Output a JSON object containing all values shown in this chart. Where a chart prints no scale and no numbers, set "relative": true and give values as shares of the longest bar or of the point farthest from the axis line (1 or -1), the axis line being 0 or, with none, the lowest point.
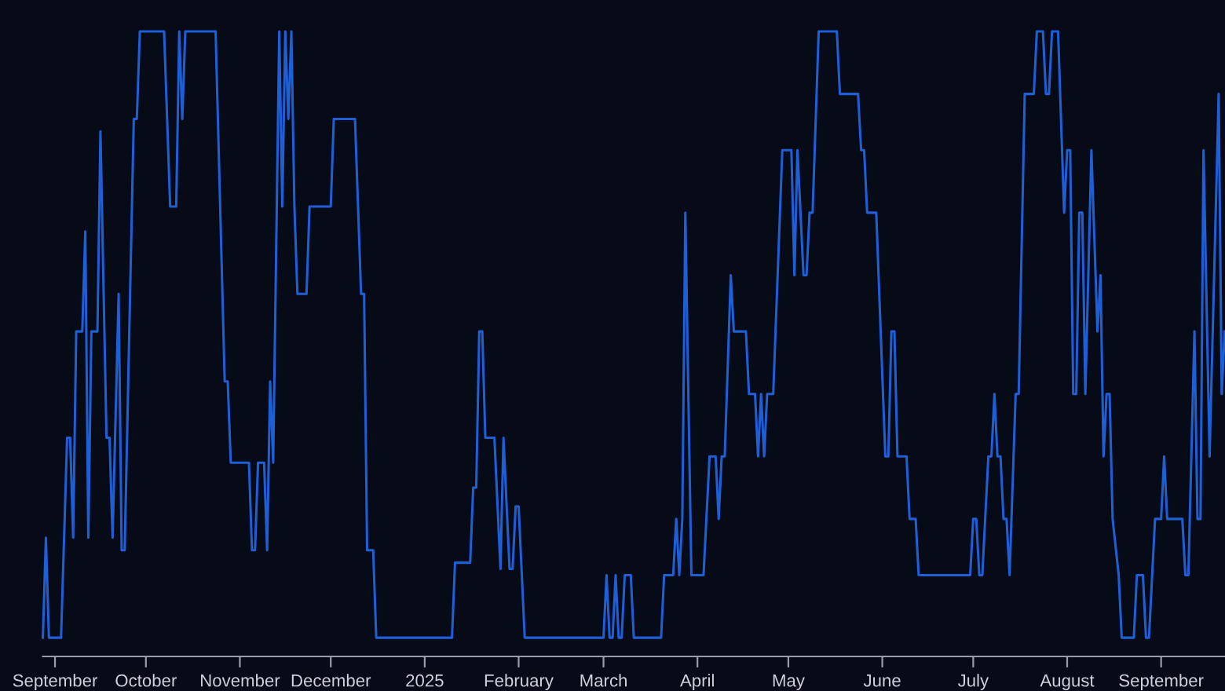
{
  "chart_data": {
    "type": "line",
    "relative": true,
    "color": "#1f5fd6",
    "xlim": [
      "2024-08-28",
      "2025-09-22T02:00"
    ],
    "xticks": [
      {
        "value": "2024-09-01",
        "label": "September"
      },
      {
        "value": "2024-10-01",
        "label": "October"
      },
      {
        "value": "2024-11-01",
        "label": "November"
      },
      {
        "value": "2024-12-01",
        "label": "December"
      },
      {
        "value": "2025-01-01",
        "label": "2025"
      },
      {
        "value": "2025-02-01",
        "label": "February"
      },
      {
        "value": "2025-03-01",
        "label": "March"
      },
      {
        "value": "2025-04-01",
        "label": "April"
      },
      {
        "value": "2025-05-01",
        "label": "May"
      },
      {
        "value": "2025-06-01",
        "label": "June"
      },
      {
        "value": "2025-07-01",
        "label": "July"
      },
      {
        "value": "2025-08-01",
        "label": "August"
      },
      {
        "value": "2025-09-01",
        "label": "September"
      }
    ],
    "x": [
      "2024-08-28",
      "2024-08-29",
      "2024-08-30",
      "2024-09-03",
      "2024-09-05",
      "2024-09-06",
      "2024-09-07",
      "2024-09-08",
      "2024-09-10",
      "2024-09-11",
      "2024-09-12",
      "2024-09-13",
      "2024-09-15",
      "2024-09-16",
      "2024-09-18",
      "2024-09-19",
      "2024-09-20",
      "2024-09-22",
      "2024-09-23",
      "2024-09-24",
      "2024-09-27",
      "2024-09-28",
      "2024-09-29",
      "2024-10-07",
      "2024-10-09",
      "2024-10-11",
      "2024-10-12",
      "2024-10-13",
      "2024-10-14",
      "2024-10-24",
      "2024-10-27",
      "2024-10-28",
      "2024-10-29",
      "2024-11-04",
      "2024-11-05",
      "2024-11-06",
      "2024-11-07",
      "2024-11-09",
      "2024-11-10",
      "2024-11-11",
      "2024-11-12",
      "2024-11-14",
      "2024-11-15",
      "2024-11-16",
      "2024-11-17",
      "2024-11-18",
      "2024-11-19",
      "2024-11-20",
      "2024-11-23",
      "2024-11-24",
      "2024-12-01",
      "2024-12-02",
      "2024-12-09",
      "2024-12-11",
      "2024-12-12",
      "2024-12-13",
      "2024-12-15",
      "2024-12-16",
      "2025-01-10",
      "2025-01-11",
      "2025-01-16",
      "2025-01-17",
      "2025-01-18",
      "2025-01-19",
      "2025-01-20",
      "2025-01-21",
      "2025-01-24",
      "2025-01-26",
      "2025-01-27",
      "2025-01-29",
      "2025-01-30",
      "2025-01-31",
      "2025-02-01",
      "2025-02-03",
      "2025-03-01",
      "2025-03-02",
      "2025-03-03",
      "2025-03-04",
      "2025-03-05",
      "2025-03-06",
      "2025-03-07",
      "2025-03-08",
      "2025-03-10",
      "2025-03-11",
      "2025-03-20",
      "2025-03-21",
      "2025-03-24",
      "2025-03-25",
      "2025-03-26",
      "2025-03-27",
      "2025-03-28",
      "2025-03-30",
      "2025-04-03",
      "2025-04-05",
      "2025-04-07",
      "2025-04-08",
      "2025-04-09",
      "2025-04-10",
      "2025-04-12",
      "2025-04-13",
      "2025-04-17",
      "2025-04-18",
      "2025-04-20",
      "2025-04-21",
      "2025-04-22",
      "2025-04-23",
      "2025-04-24",
      "2025-04-26",
      "2025-04-29",
      "2025-05-02",
      "2025-05-03",
      "2025-05-04",
      "2025-05-06",
      "2025-05-07",
      "2025-05-08",
      "2025-05-09",
      "2025-05-11",
      "2025-05-17",
      "2025-05-18",
      "2025-05-24",
      "2025-05-25",
      "2025-05-26",
      "2025-05-27",
      "2025-05-30",
      "2025-06-02",
      "2025-06-03",
      "2025-06-04",
      "2025-06-05",
      "2025-06-06",
      "2025-06-09",
      "2025-06-10",
      "2025-06-12",
      "2025-06-13",
      "2025-06-30",
      "2025-07-01",
      "2025-07-02",
      "2025-07-03",
      "2025-07-04",
      "2025-07-06",
      "2025-07-07",
      "2025-07-08",
      "2025-07-09",
      "2025-07-10",
      "2025-07-11",
      "2025-07-12",
      "2025-07-13",
      "2025-07-15",
      "2025-07-16",
      "2025-07-18",
      "2025-07-21",
      "2025-07-22",
      "2025-07-24",
      "2025-07-25",
      "2025-07-26",
      "2025-07-27",
      "2025-07-29",
      "2025-07-31",
      "2025-08-01",
      "2025-08-02",
      "2025-08-03",
      "2025-08-04",
      "2025-08-05",
      "2025-08-06",
      "2025-08-07",
      "2025-08-09",
      "2025-08-11",
      "2025-08-12",
      "2025-08-13",
      "2025-08-14",
      "2025-08-15",
      "2025-08-16",
      "2025-08-18",
      "2025-08-19",
      "2025-08-23",
      "2025-08-24",
      "2025-08-26",
      "2025-08-27",
      "2025-08-28",
      "2025-08-30",
      "2025-09-01",
      "2025-09-02",
      "2025-09-03",
      "2025-09-08",
      "2025-09-09",
      "2025-09-10",
      "2025-09-12",
      "2025-09-13",
      "2025-09-14",
      "2025-09-15",
      "2025-09-17",
      "2025-09-20",
      "2025-09-21",
      "2025-09-22"
    ],
    "values": [
      0.03,
      0.19,
      0.03,
      0.03,
      0.35,
      0.35,
      0.19,
      0.52,
      0.52,
      0.68,
      0.19,
      0.52,
      0.52,
      0.84,
      0.35,
      0.35,
      0.19,
      0.58,
      0.17,
      0.17,
      0.86,
      0.86,
      1.0,
      1.0,
      0.72,
      0.72,
      1.0,
      0.86,
      1.0,
      1.0,
      0.44,
      0.44,
      0.31,
      0.31,
      0.17,
      0.17,
      0.31,
      0.31,
      0.17,
      0.44,
      0.31,
      1.0,
      0.72,
      1.0,
      0.86,
      1.0,
      0.72,
      0.58,
      0.58,
      0.72,
      0.72,
      0.86,
      0.86,
      0.58,
      0.58,
      0.17,
      0.17,
      0.03,
      0.03,
      0.15,
      0.15,
      0.27,
      0.27,
      0.52,
      0.52,
      0.35,
      0.35,
      0.14,
      0.35,
      0.14,
      0.14,
      0.24,
      0.24,
      0.03,
      0.03,
      0.13,
      0.03,
      0.03,
      0.13,
      0.03,
      0.03,
      0.13,
      0.13,
      0.03,
      0.03,
      0.13,
      0.13,
      0.22,
      0.13,
      0.22,
      0.71,
      0.13,
      0.13,
      0.32,
      0.32,
      0.22,
      0.32,
      0.32,
      0.61,
      0.52,
      0.52,
      0.42,
      0.42,
      0.32,
      0.42,
      0.32,
      0.42,
      0.42,
      0.81,
      0.81,
      0.61,
      0.81,
      0.61,
      0.61,
      0.71,
      0.71,
      1.0,
      1.0,
      0.9,
      0.9,
      0.81,
      0.81,
      0.71,
      0.71,
      0.32,
      0.32,
      0.52,
      0.52,
      0.32,
      0.32,
      0.22,
      0.22,
      0.13,
      0.13,
      0.22,
      0.22,
      0.13,
      0.13,
      0.32,
      0.32,
      0.42,
      0.32,
      0.32,
      0.22,
      0.22,
      0.13,
      0.42,
      0.42,
      0.9,
      0.9,
      1.0,
      1.0,
      0.9,
      0.9,
      1.0,
      1.0,
      0.71,
      0.81,
      0.81,
      0.42,
      0.42,
      0.71,
      0.71,
      0.42,
      0.81,
      0.52,
      0.61,
      0.32,
      0.42,
      0.42,
      0.22,
      0.13,
      0.03,
      0.03,
      0.13,
      0.13,
      0.03,
      0.03,
      0.22,
      0.22,
      0.32,
      0.22,
      0.22,
      0.13,
      0.13,
      0.52,
      0.22,
      0.22,
      0.81,
      0.32,
      0.9,
      0.42,
      0.52
    ]
  }
}
